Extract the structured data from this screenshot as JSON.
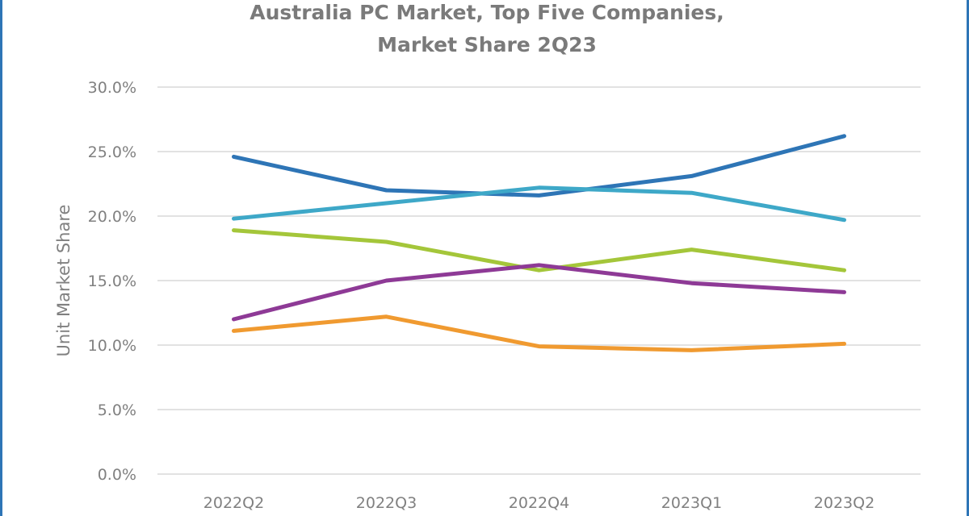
{
  "chart_data": {
    "type": "line",
    "title": "Australia PC Market, Top Five Companies, Market Share 2Q23",
    "title_lines": [
      "Australia PC Market, Top Five Companies,",
      "Market Share 2Q23"
    ],
    "xlabel": "",
    "ylabel": "Unit Market Share",
    "categories": [
      "2022Q2",
      "2022Q3",
      "2022Q4",
      "2023Q1",
      "2023Q2"
    ],
    "ylim": [
      0,
      30
    ],
    "yticks": [
      0,
      5,
      10,
      15,
      20,
      25,
      30
    ],
    "ytick_labels": [
      "0.0%",
      "5.0%",
      "10.0%",
      "15.0%",
      "20.0%",
      "25.0%",
      "30.0%"
    ],
    "grid": true,
    "legend": "none",
    "series": [
      {
        "name": "Series 1 (dark blue)",
        "color": "#2e75b6",
        "values": [
          24.6,
          22.0,
          21.6,
          23.1,
          26.2
        ]
      },
      {
        "name": "Series 2 (light blue)",
        "color": "#3ea8c8",
        "values": [
          19.8,
          21.0,
          22.2,
          21.8,
          19.7
        ]
      },
      {
        "name": "Series 3 (green)",
        "color": "#a4c63a",
        "values": [
          18.9,
          18.0,
          15.8,
          17.4,
          15.8
        ]
      },
      {
        "name": "Series 4 (purple)",
        "color": "#8e3a96",
        "values": [
          12.0,
          15.0,
          16.2,
          14.8,
          14.1
        ]
      },
      {
        "name": "Series 5 (orange)",
        "color": "#f09a30",
        "values": [
          11.1,
          12.2,
          9.9,
          9.6,
          10.1
        ]
      }
    ]
  }
}
